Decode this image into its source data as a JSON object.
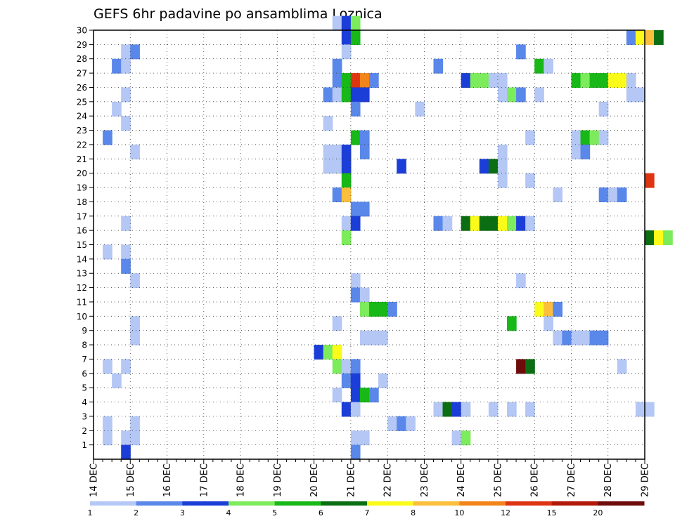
{
  "chart_data": {
    "type": "heatmap",
    "title": "GEFS 6hr padavine po ansamblima Loznica",
    "x_tick_labels": [
      "14 DEC",
      "15 DEC",
      "16 DEC",
      "17 DEC",
      "18 DEC",
      "19 DEC",
      "20 DEC",
      "21 DEC",
      "22 DEC",
      "23 DEC",
      "24 DEC",
      "25 DEC",
      "26 DEC",
      "27 DEC",
      "28 DEC",
      "29 DEC"
    ],
    "y_tick_labels": [
      "1",
      "2",
      "3",
      "4",
      "5",
      "6",
      "7",
      "8",
      "9",
      "10",
      "11",
      "12",
      "13",
      "14",
      "15",
      "16",
      "17",
      "18",
      "19",
      "20",
      "21",
      "22",
      "23",
      "24",
      "25",
      "26",
      "27",
      "28",
      "29",
      "30"
    ],
    "time_steps_per_day": 4,
    "ensemble_members": 30,
    "colorbar": {
      "levels": [
        "1",
        "2",
        "3",
        "4",
        "5",
        "6",
        "7",
        "8",
        "10",
        "12",
        "15",
        "20"
      ],
      "colors": [
        "#b4c7f5",
        "#5a87ea",
        "#1c3ed8",
        "#7ceb5c",
        "#17b817",
        "#0b6e12",
        "#fbfb1a",
        "#fbbe3d",
        "#f3841b",
        "#dd3512",
        "#b31908",
        "#6e0b0b"
      ]
    },
    "grid": true,
    "cells": [
      {
        "m": 30,
        "t": 26,
        "c": 0
      },
      {
        "m": 30,
        "t": 27,
        "c": 2
      },
      {
        "m": 30,
        "t": 28,
        "c": 3
      },
      {
        "m": 29,
        "t": 27,
        "c": 2
      },
      {
        "m": 29,
        "t": 28,
        "c": 4
      },
      {
        "m": 29,
        "t": 58,
        "c": 1
      },
      {
        "m": 29,
        "t": 59,
        "c": 6
      },
      {
        "m": 29,
        "t": 60,
        "c": 7
      },
      {
        "m": 29,
        "t": 61,
        "c": 5
      },
      {
        "m": 28,
        "t": 3,
        "c": 0
      },
      {
        "m": 28,
        "t": 4,
        "c": 1
      },
      {
        "m": 28,
        "t": 27,
        "c": 0
      },
      {
        "m": 28,
        "t": 46,
        "c": 1
      },
      {
        "m": 27,
        "t": 2,
        "c": 1
      },
      {
        "m": 27,
        "t": 3,
        "c": 0
      },
      {
        "m": 27,
        "t": 26,
        "c": 1
      },
      {
        "m": 27,
        "t": 37,
        "c": 1
      },
      {
        "m": 27,
        "t": 48,
        "c": 4
      },
      {
        "m": 27,
        "t": 49,
        "c": 0
      },
      {
        "m": 26,
        "t": 26,
        "c": 1
      },
      {
        "m": 26,
        "t": 27,
        "c": 4
      },
      {
        "m": 26,
        "t": 28,
        "c": 9
      },
      {
        "m": 26,
        "t": 29,
        "c": 8
      },
      {
        "m": 26,
        "t": 30,
        "c": 1
      },
      {
        "m": 26,
        "t": 40,
        "c": 2
      },
      {
        "m": 26,
        "t": 41,
        "c": 3
      },
      {
        "m": 26,
        "t": 42,
        "c": 3
      },
      {
        "m": 26,
        "t": 43,
        "c": 0
      },
      {
        "m": 26,
        "t": 44,
        "c": 0
      },
      {
        "m": 26,
        "t": 52,
        "c": 4
      },
      {
        "m": 26,
        "t": 53,
        "c": 3
      },
      {
        "m": 26,
        "t": 54,
        "c": 4
      },
      {
        "m": 26,
        "t": 55,
        "c": 4
      },
      {
        "m": 26,
        "t": 56,
        "c": 6
      },
      {
        "m": 26,
        "t": 57,
        "c": 6
      },
      {
        "m": 26,
        "t": 58,
        "c": 0
      },
      {
        "m": 25,
        "t": 3,
        "c": 0
      },
      {
        "m": 25,
        "t": 25,
        "c": 1
      },
      {
        "m": 25,
        "t": 26,
        "c": 0
      },
      {
        "m": 25,
        "t": 27,
        "c": 4
      },
      {
        "m": 25,
        "t": 28,
        "c": 2
      },
      {
        "m": 25,
        "t": 29,
        "c": 2
      },
      {
        "m": 25,
        "t": 44,
        "c": 0
      },
      {
        "m": 25,
        "t": 45,
        "c": 3
      },
      {
        "m": 25,
        "t": 46,
        "c": 1
      },
      {
        "m": 25,
        "t": 48,
        "c": 0
      },
      {
        "m": 25,
        "t": 58,
        "c": 0
      },
      {
        "m": 25,
        "t": 59,
        "c": 0
      },
      {
        "m": 24,
        "t": 2,
        "c": 0
      },
      {
        "m": 24,
        "t": 28,
        "c": 1
      },
      {
        "m": 24,
        "t": 35,
        "c": 0
      },
      {
        "m": 24,
        "t": 55,
        "c": 0
      },
      {
        "m": 23,
        "t": 3,
        "c": 0
      },
      {
        "m": 23,
        "t": 25,
        "c": 0
      },
      {
        "m": 22,
        "t": 1,
        "c": 1
      },
      {
        "m": 22,
        "t": 28,
        "c": 4
      },
      {
        "m": 22,
        "t": 29,
        "c": 1
      },
      {
        "m": 22,
        "t": 47,
        "c": 0
      },
      {
        "m": 22,
        "t": 52,
        "c": 0
      },
      {
        "m": 22,
        "t": 53,
        "c": 4
      },
      {
        "m": 22,
        "t": 54,
        "c": 3
      },
      {
        "m": 22,
        "t": 55,
        "c": 0
      },
      {
        "m": 21,
        "t": 4,
        "c": 0
      },
      {
        "m": 21,
        "t": 25,
        "c": 0
      },
      {
        "m": 21,
        "t": 26,
        "c": 0
      },
      {
        "m": 21,
        "t": 27,
        "c": 2
      },
      {
        "m": 21,
        "t": 29,
        "c": 1
      },
      {
        "m": 21,
        "t": 44,
        "c": 0
      },
      {
        "m": 21,
        "t": 52,
        "c": 0
      },
      {
        "m": 21,
        "t": 53,
        "c": 1
      },
      {
        "m": 20,
        "t": 25,
        "c": 0
      },
      {
        "m": 20,
        "t": 26,
        "c": 0
      },
      {
        "m": 20,
        "t": 27,
        "c": 2
      },
      {
        "m": 20,
        "t": 33,
        "c": 2
      },
      {
        "m": 20,
        "t": 42,
        "c": 2
      },
      {
        "m": 20,
        "t": 43,
        "c": 5
      },
      {
        "m": 20,
        "t": 44,
        "c": 0
      },
      {
        "m": 19,
        "t": 27,
        "c": 4
      },
      {
        "m": 19,
        "t": 44,
        "c": 0
      },
      {
        "m": 19,
        "t": 47,
        "c": 0
      },
      {
        "m": 19,
        "t": 60,
        "c": 9
      },
      {
        "m": 18,
        "t": 26,
        "c": 1
      },
      {
        "m": 18,
        "t": 27,
        "c": 7
      },
      {
        "m": 18,
        "t": 50,
        "c": 0
      },
      {
        "m": 18,
        "t": 55,
        "c": 1
      },
      {
        "m": 18,
        "t": 56,
        "c": 0
      },
      {
        "m": 18,
        "t": 57,
        "c": 1
      },
      {
        "m": 17,
        "t": 28,
        "c": 1
      },
      {
        "m": 17,
        "t": 29,
        "c": 1
      },
      {
        "m": 16,
        "t": 3,
        "c": 0
      },
      {
        "m": 16,
        "t": 27,
        "c": 0
      },
      {
        "m": 16,
        "t": 28,
        "c": 2
      },
      {
        "m": 16,
        "t": 37,
        "c": 1
      },
      {
        "m": 16,
        "t": 38,
        "c": 0
      },
      {
        "m": 16,
        "t": 40,
        "c": 5
      },
      {
        "m": 16,
        "t": 41,
        "c": 6
      },
      {
        "m": 16,
        "t": 42,
        "c": 5
      },
      {
        "m": 16,
        "t": 43,
        "c": 5
      },
      {
        "m": 16,
        "t": 44,
        "c": 6
      },
      {
        "m": 16,
        "t": 45,
        "c": 3
      },
      {
        "m": 16,
        "t": 46,
        "c": 2
      },
      {
        "m": 16,
        "t": 47,
        "c": 0
      },
      {
        "m": 15,
        "t": 27,
        "c": 3
      },
      {
        "m": 15,
        "t": 60,
        "c": 5
      },
      {
        "m": 15,
        "t": 61,
        "c": 6
      },
      {
        "m": 15,
        "t": 62,
        "c": 3
      },
      {
        "m": 14,
        "t": 1,
        "c": 0
      },
      {
        "m": 14,
        "t": 3,
        "c": 0
      },
      {
        "m": 13,
        "t": 3,
        "c": 1
      },
      {
        "m": 12,
        "t": 4,
        "c": 0
      },
      {
        "m": 12,
        "t": 28,
        "c": 0
      },
      {
        "m": 12,
        "t": 46,
        "c": 0
      },
      {
        "m": 11,
        "t": 28,
        "c": 1
      },
      {
        "m": 11,
        "t": 29,
        "c": 0
      },
      {
        "m": 10,
        "t": 29,
        "c": 3
      },
      {
        "m": 10,
        "t": 30,
        "c": 4
      },
      {
        "m": 10,
        "t": 31,
        "c": 4
      },
      {
        "m": 10,
        "t": 32,
        "c": 1
      },
      {
        "m": 10,
        "t": 48,
        "c": 6
      },
      {
        "m": 10,
        "t": 49,
        "c": 7
      },
      {
        "m": 10,
        "t": 50,
        "c": 1
      },
      {
        "m": 9,
        "t": 4,
        "c": 0
      },
      {
        "m": 9,
        "t": 26,
        "c": 0
      },
      {
        "m": 9,
        "t": 45,
        "c": 4
      },
      {
        "m": 9,
        "t": 49,
        "c": 0
      },
      {
        "m": 8,
        "t": 4,
        "c": 0
      },
      {
        "m": 8,
        "t": 29,
        "c": 0
      },
      {
        "m": 8,
        "t": 30,
        "c": 0
      },
      {
        "m": 8,
        "t": 31,
        "c": 0
      },
      {
        "m": 8,
        "t": 50,
        "c": 0
      },
      {
        "m": 8,
        "t": 51,
        "c": 1
      },
      {
        "m": 8,
        "t": 52,
        "c": 0
      },
      {
        "m": 8,
        "t": 53,
        "c": 0
      },
      {
        "m": 8,
        "t": 54,
        "c": 1
      },
      {
        "m": 8,
        "t": 55,
        "c": 1
      },
      {
        "m": 7,
        "t": 24,
        "c": 2
      },
      {
        "m": 7,
        "t": 25,
        "c": 3
      },
      {
        "m": 7,
        "t": 26,
        "c": 6
      },
      {
        "m": 6,
        "t": 1,
        "c": 0
      },
      {
        "m": 6,
        "t": 3,
        "c": 0
      },
      {
        "m": 6,
        "t": 26,
        "c": 3
      },
      {
        "m": 6,
        "t": 27,
        "c": 0
      },
      {
        "m": 6,
        "t": 28,
        "c": 1
      },
      {
        "m": 6,
        "t": 46,
        "c": 11
      },
      {
        "m": 6,
        "t": 47,
        "c": 5
      },
      {
        "m": 6,
        "t": 57,
        "c": 0
      },
      {
        "m": 5,
        "t": 2,
        "c": 0
      },
      {
        "m": 5,
        "t": 27,
        "c": 1
      },
      {
        "m": 5,
        "t": 28,
        "c": 2
      },
      {
        "m": 5,
        "t": 31,
        "c": 0
      },
      {
        "m": 4,
        "t": 26,
        "c": 0
      },
      {
        "m": 4,
        "t": 28,
        "c": 2
      },
      {
        "m": 4,
        "t": 29,
        "c": 4
      },
      {
        "m": 4,
        "t": 30,
        "c": 1
      },
      {
        "m": 3,
        "t": 27,
        "c": 2
      },
      {
        "m": 3,
        "t": 28,
        "c": 0
      },
      {
        "m": 3,
        "t": 37,
        "c": 0
      },
      {
        "m": 3,
        "t": 38,
        "c": 5
      },
      {
        "m": 3,
        "t": 39,
        "c": 2
      },
      {
        "m": 3,
        "t": 40,
        "c": 0
      },
      {
        "m": 3,
        "t": 43,
        "c": 0
      },
      {
        "m": 3,
        "t": 45,
        "c": 0
      },
      {
        "m": 3,
        "t": 47,
        "c": 0
      },
      {
        "m": 3,
        "t": 59,
        "c": 0
      },
      {
        "m": 3,
        "t": 60,
        "c": 0
      },
      {
        "m": 2,
        "t": 1,
        "c": 0
      },
      {
        "m": 2,
        "t": 4,
        "c": 0
      },
      {
        "m": 2,
        "t": 32,
        "c": 0
      },
      {
        "m": 2,
        "t": 33,
        "c": 1
      },
      {
        "m": 2,
        "t": 34,
        "c": 0
      },
      {
        "m": 1,
        "t": 1,
        "c": 0
      },
      {
        "m": 1,
        "t": 3,
        "c": 0
      },
      {
        "m": 1,
        "t": 4,
        "c": 0
      },
      {
        "m": 1,
        "t": 28,
        "c": 0
      },
      {
        "m": 1,
        "t": 29,
        "c": 0
      },
      {
        "m": 1,
        "t": 39,
        "c": 0
      },
      {
        "m": 1,
        "t": 40,
        "c": 3
      },
      {
        "m": 0,
        "t": 3,
        "c": 2
      },
      {
        "m": 0,
        "t": 28,
        "c": 1
      }
    ]
  }
}
